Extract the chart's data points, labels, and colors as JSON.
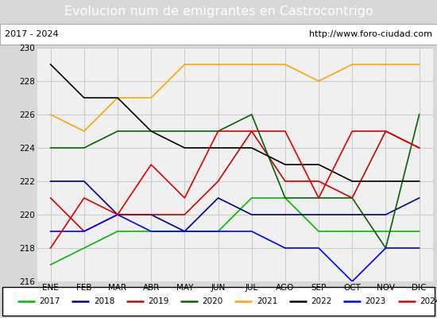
{
  "title": "Evolucion num de emigrantes en Castrocontrigo",
  "subtitle_left": "2017 - 2024",
  "subtitle_right": "http://www.foro-ciudad.com",
  "months": [
    "ENE",
    "FEB",
    "MAR",
    "ABR",
    "MAY",
    "JUN",
    "JUL",
    "AGO",
    "SEP",
    "OCT",
    "NOV",
    "DIC"
  ],
  "ylim": [
    216,
    230
  ],
  "yticks": [
    216,
    218,
    220,
    222,
    224,
    226,
    228,
    230
  ],
  "series": {
    "2017": {
      "color": "#00bb00",
      "values": [
        217,
        218,
        219,
        219,
        219,
        219,
        221,
        221,
        219,
        219,
        219,
        219
      ]
    },
    "2018": {
      "color": "#00008b",
      "values": [
        222,
        222,
        220,
        220,
        219,
        221,
        220,
        220,
        220,
        220,
        220,
        221
      ]
    },
    "2019": {
      "color": "#cc0000",
      "values": [
        221,
        219,
        220,
        220,
        220,
        222,
        225,
        222,
        222,
        221,
        225,
        224
      ]
    },
    "2020": {
      "color": "#006400",
      "values": [
        224,
        224,
        225,
        225,
        225,
        225,
        226,
        221,
        221,
        221,
        218,
        226
      ]
    },
    "2021": {
      "color": "#ffa500",
      "values": [
        226,
        225,
        227,
        227,
        229,
        229,
        229,
        229,
        228,
        229,
        229,
        229
      ]
    },
    "2022": {
      "color": "#000000",
      "values": [
        229,
        227,
        227,
        225,
        224,
        224,
        224,
        223,
        223,
        222,
        222,
        222
      ]
    },
    "2023": {
      "color": "#0000ff",
      "values": [
        219,
        219,
        220,
        219,
        219,
        219,
        219,
        218,
        218,
        216,
        218,
        218
      ]
    },
    "2024": {
      "color": "#dd0000",
      "values": [
        218,
        221,
        220,
        223,
        221,
        225,
        225,
        225,
        221,
        225,
        225,
        224
      ]
    }
  },
  "title_bg": "#4a90d9",
  "title_color": "white",
  "title_fontsize": 11.5,
  "subtitle_bg": "#ffffff",
  "subtitle_border": "#aaaaaa",
  "plot_bg": "#f0f0f0",
  "outer_bg": "#d8d8d8",
  "legend_bg": "#ffffff",
  "grid_color": "#cccccc"
}
